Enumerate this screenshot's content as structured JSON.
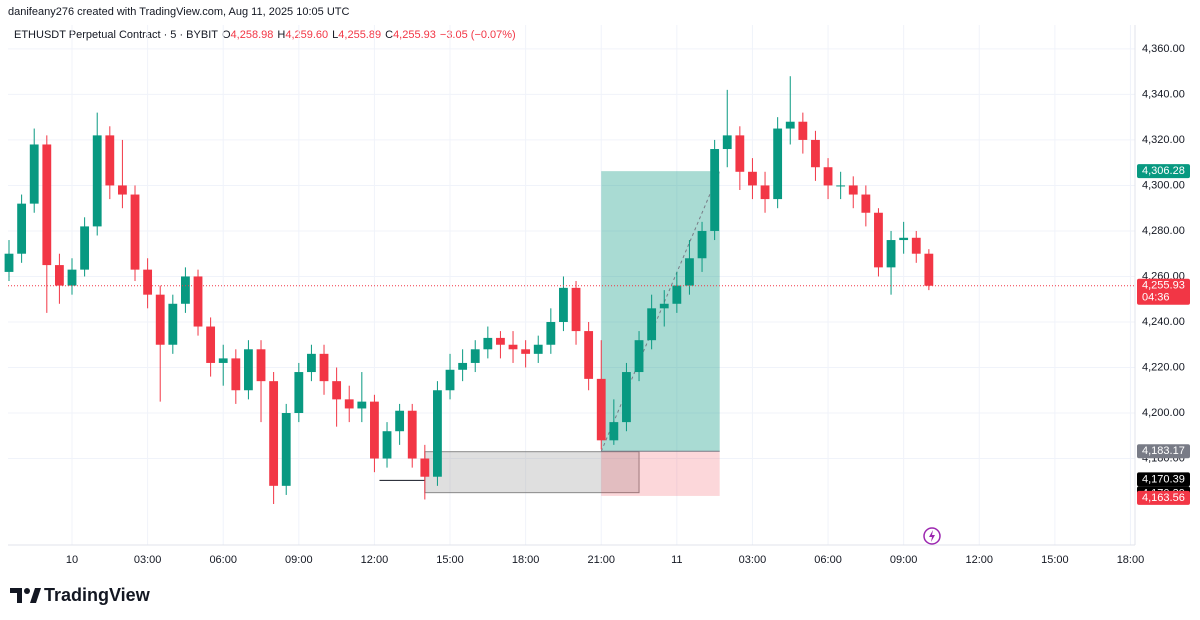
{
  "header": {
    "attribution": "danifeany276 created with TradingView.com, Aug 11, 2025 10:05 UTC"
  },
  "chart_data": {
    "type": "candlestick",
    "legend": {
      "symbol": "ETHUSDT Perpetual Contract · 5 · BYBIT",
      "open_label": "O",
      "open": "4,258.98",
      "high_label": "H",
      "high": "4,259.60",
      "low_label": "L",
      "low": "4,255.89",
      "close_label": "C",
      "close": "4,255.93",
      "change": "−3.05 (−0.07%)"
    },
    "up_color": "#089981",
    "down_color": "#f23645",
    "x": [
      -2.5,
      -2,
      -1.5,
      -1,
      -0.5,
      0,
      0.5,
      1,
      1.5,
      2,
      2.5,
      3,
      3.5,
      4,
      4.5,
      5,
      5.5,
      6,
      6.5,
      7,
      7.5,
      8,
      8.5,
      9,
      9.5,
      10,
      10.5,
      11,
      11.5,
      12,
      12.5,
      13,
      13.5,
      14,
      14.5,
      15,
      15.5,
      16,
      16.5,
      17,
      17.5,
      18,
      18.5,
      19,
      19.5,
      20,
      20.5,
      21,
      21.5,
      22,
      22.5,
      23,
      23.5,
      24,
      24.5,
      25,
      25.5,
      26,
      26.5,
      27,
      27.5,
      28,
      28.5,
      29,
      29.5,
      30,
      30.5,
      31,
      31.5,
      32,
      32.5,
      33,
      33.5,
      34
    ],
    "ohlc": [
      [
        4262,
        4276,
        4258,
        4270
      ],
      [
        4270,
        4296,
        4266,
        4292
      ],
      [
        4292,
        4325,
        4288,
        4318
      ],
      [
        4318,
        4322,
        4244,
        4265
      ],
      [
        4265,
        4270,
        4248,
        4256
      ],
      [
        4256,
        4268,
        4252,
        4263
      ],
      [
        4263,
        4286,
        4260,
        4282
      ],
      [
        4282,
        4332,
        4278,
        4322
      ],
      [
        4322,
        4326,
        4294,
        4300
      ],
      [
        4300,
        4320,
        4290,
        4296
      ],
      [
        4296,
        4300,
        4258,
        4263
      ],
      [
        4263,
        4268,
        4246,
        4252
      ],
      [
        4252,
        4256,
        4205,
        4230
      ],
      [
        4230,
        4252,
        4226,
        4248
      ],
      [
        4248,
        4264,
        4244,
        4260
      ],
      [
        4260,
        4263,
        4234,
        4238
      ],
      [
        4238,
        4242,
        4216,
        4222
      ],
      [
        4222,
        4230,
        4212,
        4224
      ],
      [
        4224,
        4228,
        4204,
        4210
      ],
      [
        4210,
        4232,
        4206,
        4228
      ],
      [
        4228,
        4232,
        4196,
        4214
      ],
      [
        4214,
        4218,
        4160,
        4168
      ],
      [
        4168,
        4204,
        4164,
        4200
      ],
      [
        4200,
        4222,
        4196,
        4218
      ],
      [
        4218,
        4230,
        4214,
        4226
      ],
      [
        4226,
        4230,
        4208,
        4214
      ],
      [
        4214,
        4220,
        4194,
        4206
      ],
      [
        4206,
        4212,
        4196,
        4202
      ],
      [
        4202,
        4218,
        4196,
        4205
      ],
      [
        4205,
        4208,
        4174,
        4180
      ],
      [
        4180,
        4196,
        4176,
        4192
      ],
      [
        4192,
        4204,
        4186,
        4201
      ],
      [
        4201,
        4204,
        4176,
        4180
      ],
      [
        4180,
        4186,
        4162,
        4172
      ],
      [
        4172,
        4214,
        4168,
        4210
      ],
      [
        4210,
        4226,
        4206,
        4219
      ],
      [
        4219,
        4228,
        4214,
        4222
      ],
      [
        4222,
        4232,
        4218,
        4228
      ],
      [
        4228,
        4238,
        4224,
        4233
      ],
      [
        4233,
        4236,
        4224,
        4230
      ],
      [
        4230,
        4236,
        4222,
        4228
      ],
      [
        4228,
        4232,
        4220,
        4226
      ],
      [
        4226,
        4234,
        4222,
        4230
      ],
      [
        4230,
        4246,
        4226,
        4240
      ],
      [
        4240,
        4260,
        4236,
        4255
      ],
      [
        4255,
        4258,
        4230,
        4236
      ],
      [
        4236,
        4240,
        4210,
        4215
      ],
      [
        4215,
        4232,
        4184,
        4188
      ],
      [
        4188,
        4206,
        4186,
        4196
      ],
      [
        4196,
        4222,
        4192,
        4218
      ],
      [
        4218,
        4236,
        4214,
        4232
      ],
      [
        4232,
        4252,
        4228,
        4246
      ],
      [
        4246,
        4254,
        4238,
        4248
      ],
      [
        4248,
        4262,
        4244,
        4256
      ],
      [
        4256,
        4276,
        4252,
        4268
      ],
      [
        4268,
        4284,
        4262,
        4280
      ],
      [
        4280,
        4320,
        4276,
        4316
      ],
      [
        4316,
        4342,
        4308,
        4322
      ],
      [
        4322,
        4326,
        4298,
        4306
      ],
      [
        4306,
        4312,
        4294,
        4300
      ],
      [
        4300,
        4306,
        4288,
        4294
      ],
      [
        4294,
        4330,
        4290,
        4325
      ],
      [
        4325,
        4348,
        4318,
        4328
      ],
      [
        4328,
        4332,
        4314,
        4320
      ],
      [
        4320,
        4324,
        4302,
        4308
      ],
      [
        4308,
        4312,
        4294,
        4300
      ],
      [
        4300,
        4306,
        4294,
        4300
      ],
      [
        4300,
        4304,
        4290,
        4296
      ],
      [
        4296,
        4300,
        4282,
        4288
      ],
      [
        4288,
        4290,
        4260,
        4264
      ],
      [
        4264,
        4280,
        4252,
        4276
      ],
      [
        4276,
        4284,
        4270,
        4277
      ],
      [
        4277,
        4280,
        4266,
        4270
      ],
      [
        4270,
        4272,
        4254,
        4255.93
      ]
    ],
    "xlim": [
      -2.54,
      42.18
    ],
    "xticks": [
      {
        "value": 0,
        "label": "10"
      },
      {
        "value": 3,
        "label": "03:00"
      },
      {
        "value": 6,
        "label": "06:00"
      },
      {
        "value": 9,
        "label": "09:00"
      },
      {
        "value": 12,
        "label": "12:00"
      },
      {
        "value": 15,
        "label": "15:00"
      },
      {
        "value": 18,
        "label": "18:00"
      },
      {
        "value": 21,
        "label": "21:00"
      },
      {
        "value": 24,
        "label": "11"
      },
      {
        "value": 27,
        "label": "03:00"
      },
      {
        "value": 30,
        "label": "06:00"
      },
      {
        "value": 33,
        "label": "09:00"
      },
      {
        "value": 36,
        "label": "12:00"
      },
      {
        "value": 39,
        "label": "15:00"
      },
      {
        "value": 42,
        "label": "18:00"
      }
    ],
    "ylim": [
      4142,
      4370.5
    ],
    "yticks": [
      {
        "value": 4180,
        "label": "4,180.00"
      },
      {
        "value": 4200,
        "label": "4,200.00"
      },
      {
        "value": 4220,
        "label": "4,220.00"
      },
      {
        "value": 4240,
        "label": "4,240.00"
      },
      {
        "value": 4260,
        "label": "4,260.00"
      },
      {
        "value": 4280,
        "label": "4,280.00"
      },
      {
        "value": 4300,
        "label": "4,300.00"
      },
      {
        "value": 4320,
        "label": "4,320.00"
      },
      {
        "value": 4340,
        "label": "4,340.00"
      },
      {
        "value": 4360,
        "label": "4,360.00"
      }
    ],
    "grid": true,
    "position": {
      "start": 21,
      "end": 25.7,
      "entry": {
        "value": 4183.17,
        "label": "4,183.17"
      },
      "target": {
        "value": 4306.28,
        "label": "4,306.28"
      },
      "stop": {
        "value": 4163.56,
        "label": "4,163.56"
      }
    },
    "zone": {
      "start": 14,
      "end": 22.5,
      "high": 4183,
      "low": 4165
    },
    "levels": [
      {
        "value": 4170.39,
        "label": "4,170.39",
        "start": 12.2,
        "end": 14
      },
      {
        "value": 4170.39,
        "label": "4,170.39"
      }
    ],
    "last_price": {
      "value": 4255.93,
      "label": "4,255.93",
      "countdown": "04:36"
    }
  },
  "footer": {
    "brand": "TradingView"
  }
}
